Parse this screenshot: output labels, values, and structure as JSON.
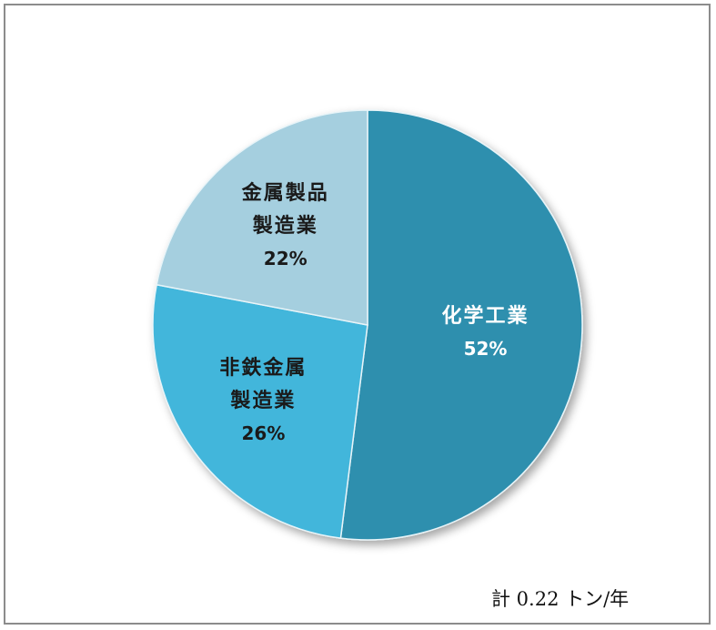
{
  "chart_data": {
    "type": "pie",
    "title": "",
    "slices": [
      {
        "label_lines": [
          "化学工業"
        ],
        "value": 52,
        "percent_label": "52%",
        "color": "#2e8fae",
        "text_color": "#ffffff"
      },
      {
        "label_lines": [
          "非鉄金属",
          "製造業"
        ],
        "value": 26,
        "percent_label": "26%",
        "color": "#42b6db",
        "text_color": "#1a1a1a"
      },
      {
        "label_lines": [
          "金属製品",
          "製造業"
        ],
        "value": 22,
        "percent_label": "22%",
        "color": "#a5cfdf",
        "text_color": "#1a1a1a"
      }
    ],
    "start": "12 o'clock",
    "direction": "clockwise"
  },
  "note": {
    "total_text": "計 0.22 トン/年"
  }
}
